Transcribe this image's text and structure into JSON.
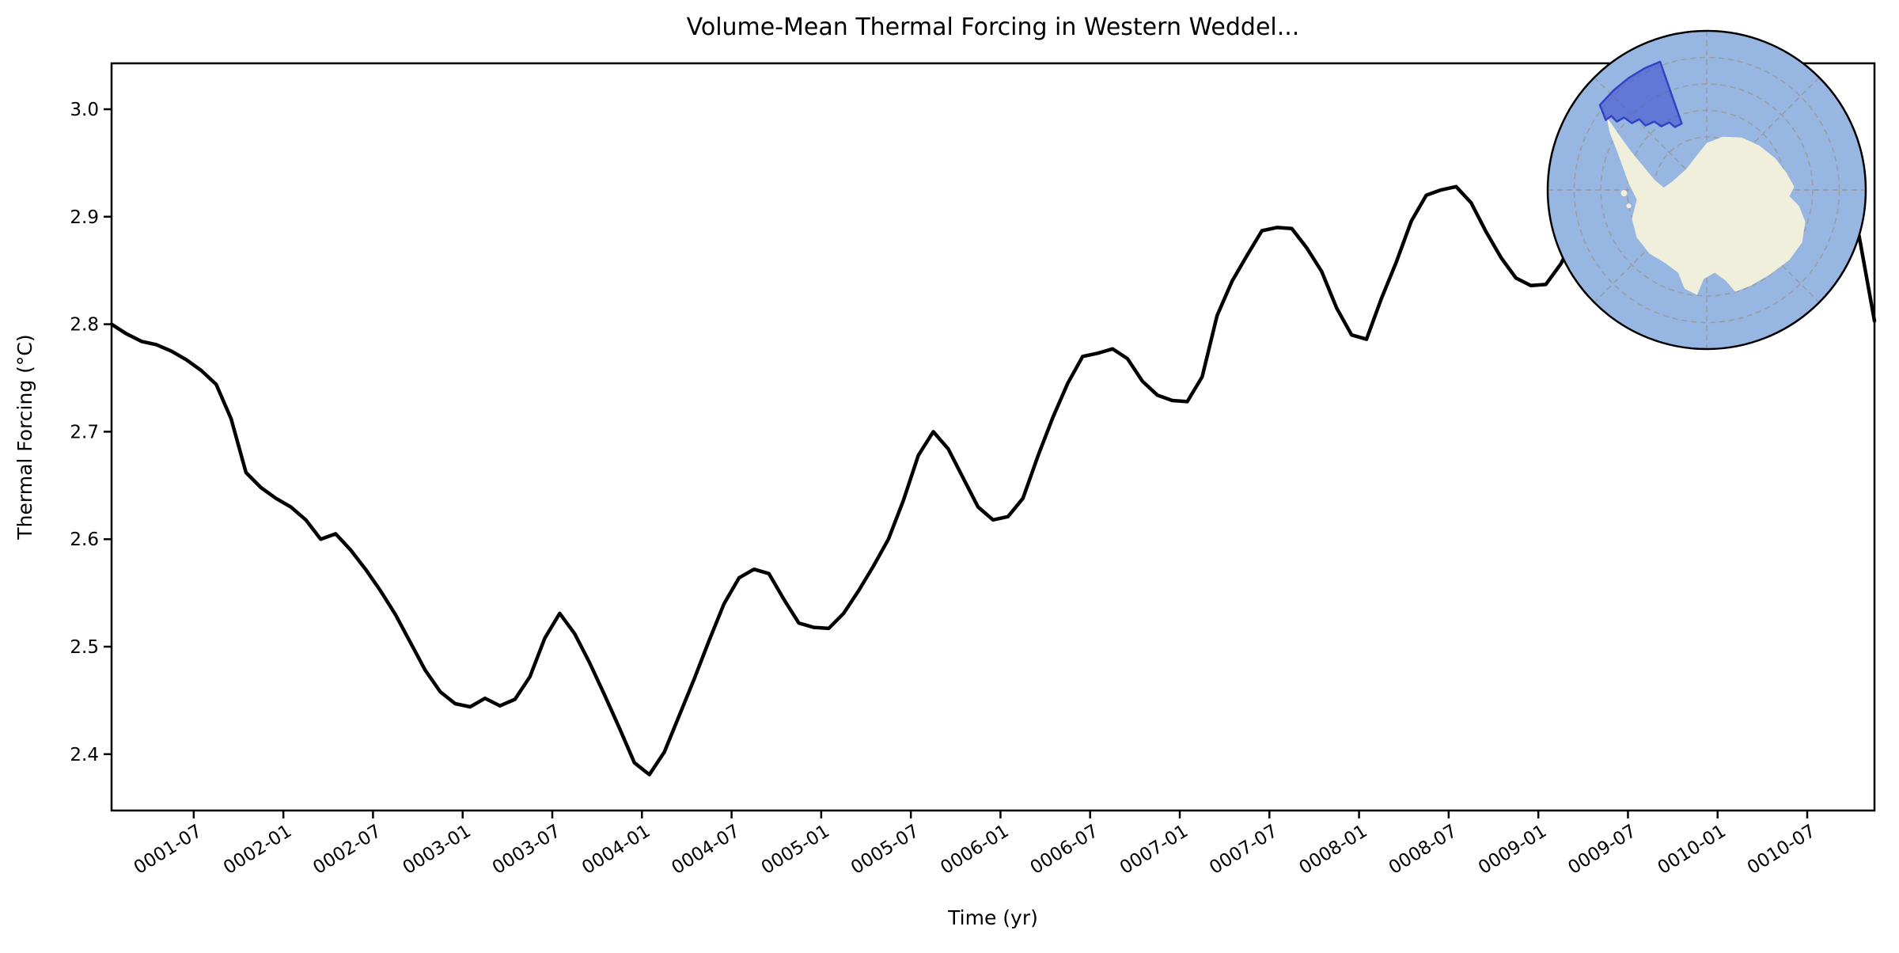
{
  "figure": {
    "title": "Volume-Mean Thermal Forcing in Western Weddel...",
    "xlabel": "Time (yr)",
    "ylabel": "Thermal Forcing (°C)"
  },
  "chart_data": {
    "type": "line",
    "title": "Volume-Mean Thermal Forcing in Western Weddel...",
    "xlabel": "Time (yr)",
    "ylabel": "Thermal Forcing (°C)",
    "x_start": "0001-01",
    "x_step_months": 1,
    "x_tick_labels": [
      "0001-07",
      "0002-01",
      "0002-07",
      "0003-01",
      "0003-07",
      "0004-01",
      "0004-07",
      "0005-01",
      "0005-07",
      "0006-01",
      "0006-07",
      "0007-01",
      "0007-07",
      "0008-01",
      "0008-07",
      "0009-01",
      "0009-07",
      "0010-01",
      "0010-07"
    ],
    "y_ticks": [
      2.4,
      2.5,
      2.6,
      2.7,
      2.8,
      2.9,
      3.0
    ],
    "y_tick_labels": [
      "2.4",
      "2.5",
      "2.6",
      "2.7",
      "2.8",
      "2.9",
      "3.0"
    ],
    "ylim": [
      2.347,
      3.043
    ],
    "grid": false,
    "legend": "none",
    "line_color": "#000000",
    "line_width": 4.5,
    "values": [
      2.8,
      2.791,
      2.784,
      2.781,
      2.775,
      2.767,
      2.757,
      2.744,
      2.712,
      2.662,
      2.648,
      2.638,
      2.63,
      2.618,
      2.6,
      2.605,
      2.59,
      2.572,
      2.552,
      2.53,
      2.504,
      2.478,
      2.458,
      2.447,
      2.444,
      2.452,
      2.445,
      2.451,
      2.472,
      2.508,
      2.531,
      2.512,
      2.485,
      2.455,
      2.424,
      2.392,
      2.381,
      2.402,
      2.436,
      2.47,
      2.506,
      2.54,
      2.564,
      2.572,
      2.568,
      2.544,
      2.522,
      2.518,
      2.517,
      2.531,
      2.552,
      2.575,
      2.6,
      2.636,
      2.678,
      2.7,
      2.684,
      2.657,
      2.63,
      2.618,
      2.621,
      2.638,
      2.677,
      2.713,
      2.745,
      2.77,
      2.773,
      2.777,
      2.768,
      2.747,
      2.734,
      2.729,
      2.728,
      2.751,
      2.808,
      2.84,
      2.864,
      2.887,
      2.89,
      2.889,
      2.871,
      2.849,
      2.815,
      2.79,
      2.786,
      2.824,
      2.858,
      2.896,
      2.92,
      2.925,
      2.928,
      2.913,
      2.886,
      2.862,
      2.843,
      2.836,
      2.837,
      2.856,
      2.882,
      2.915,
      2.944,
      2.963,
      2.972,
      2.958,
      2.934,
      2.91,
      2.893,
      2.882,
      2.878,
      2.898,
      2.928,
      2.96,
      2.986,
      3.004,
      3.01,
      2.993,
      2.948,
      2.88,
      2.803
    ]
  },
  "inset_map": {
    "name": "antarctic-region-locator",
    "view": "south-polar",
    "ocean_color": "#97b6e1",
    "land_color": "#efefdb",
    "graticule_color": "#9a9a9a",
    "border_color": "#000000",
    "region_fill": "#4353cf",
    "region_fill_opacity": 0.62,
    "region_border": "#2e3ec4"
  }
}
